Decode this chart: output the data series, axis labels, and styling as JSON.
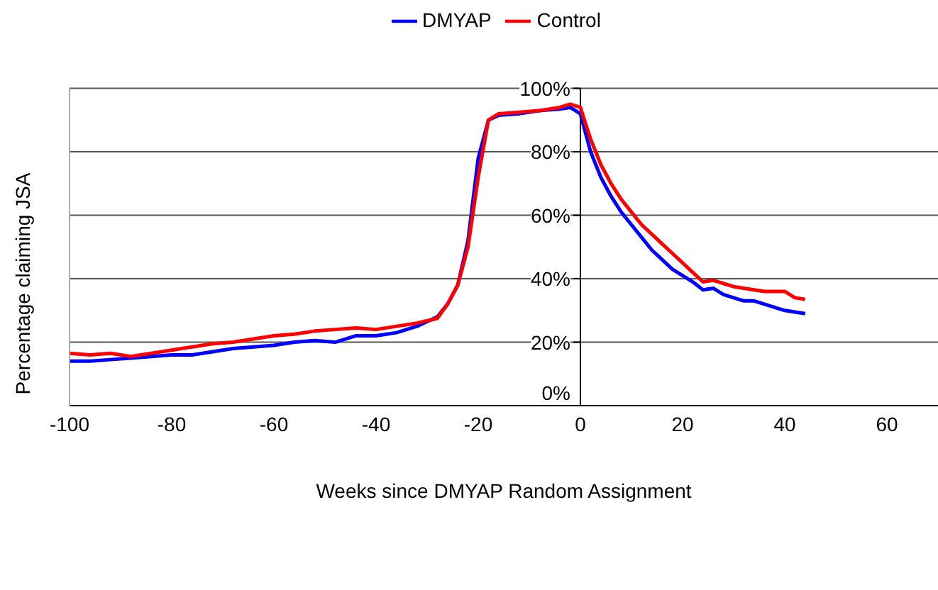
{
  "chart_data": {
    "type": "line",
    "xlabel": "Weeks since DMYAP Random Assignment",
    "ylabel": "Percentage claiming JSA",
    "x": [
      -100,
      -96,
      -92,
      -88,
      -84,
      -80,
      -76,
      -72,
      -68,
      -64,
      -60,
      -56,
      -52,
      -48,
      -44,
      -40,
      -36,
      -32,
      -28,
      -26,
      -24,
      -22,
      -20,
      -18,
      -16,
      -12,
      -8,
      -4,
      -2,
      0,
      2,
      4,
      6,
      8,
      10,
      12,
      14,
      16,
      18,
      20,
      22,
      24,
      26,
      28,
      30,
      32,
      34,
      36,
      38,
      40,
      42,
      44
    ],
    "series": [
      {
        "name": "DMYAP",
        "color": "#0000ff",
        "values": [
          14,
          14,
          14.5,
          15,
          15.5,
          16,
          16,
          17,
          18,
          18.5,
          19,
          20,
          20.5,
          20,
          22,
          22,
          23,
          25,
          28,
          32,
          38,
          52,
          78,
          90,
          91.5,
          92,
          93,
          93.5,
          94,
          92,
          80,
          72,
          66,
          61,
          57,
          53,
          49,
          46,
          43,
          41,
          39,
          36.5,
          37,
          35,
          34,
          33,
          33,
          32,
          31,
          30,
          29.5,
          29
        ]
      },
      {
        "name": "Control",
        "color": "#ff0000",
        "values": [
          16.5,
          16,
          16.5,
          15.5,
          16.5,
          17.5,
          18.5,
          19.5,
          20,
          21,
          22,
          22.5,
          23.5,
          24,
          24.5,
          24,
          25,
          26,
          27.5,
          32,
          38,
          50,
          72,
          90,
          92,
          92.5,
          93,
          94,
          95,
          94,
          84,
          76,
          70,
          65,
          61,
          57,
          54,
          51,
          48,
          45,
          42,
          39,
          39.5,
          38.5,
          37.5,
          37,
          36.5,
          36,
          36,
          36,
          34,
          33.5
        ]
      }
    ],
    "xlim": [
      -100,
      70
    ],
    "xticks": [
      -100,
      -80,
      -60,
      -40,
      -20,
      0,
      20,
      40,
      60
    ],
    "ylim": [
      0,
      100
    ],
    "yticks": [
      {
        "value": 0,
        "label": "0%"
      },
      {
        "value": 20,
        "label": "20%"
      },
      {
        "value": 40,
        "label": "40%"
      },
      {
        "value": 60,
        "label": "60%"
      },
      {
        "value": 80,
        "label": "80%"
      },
      {
        "value": 100,
        "label": "100%"
      }
    ],
    "grid": "y",
    "legend": "top",
    "marker": "none",
    "line_style": "solid"
  }
}
